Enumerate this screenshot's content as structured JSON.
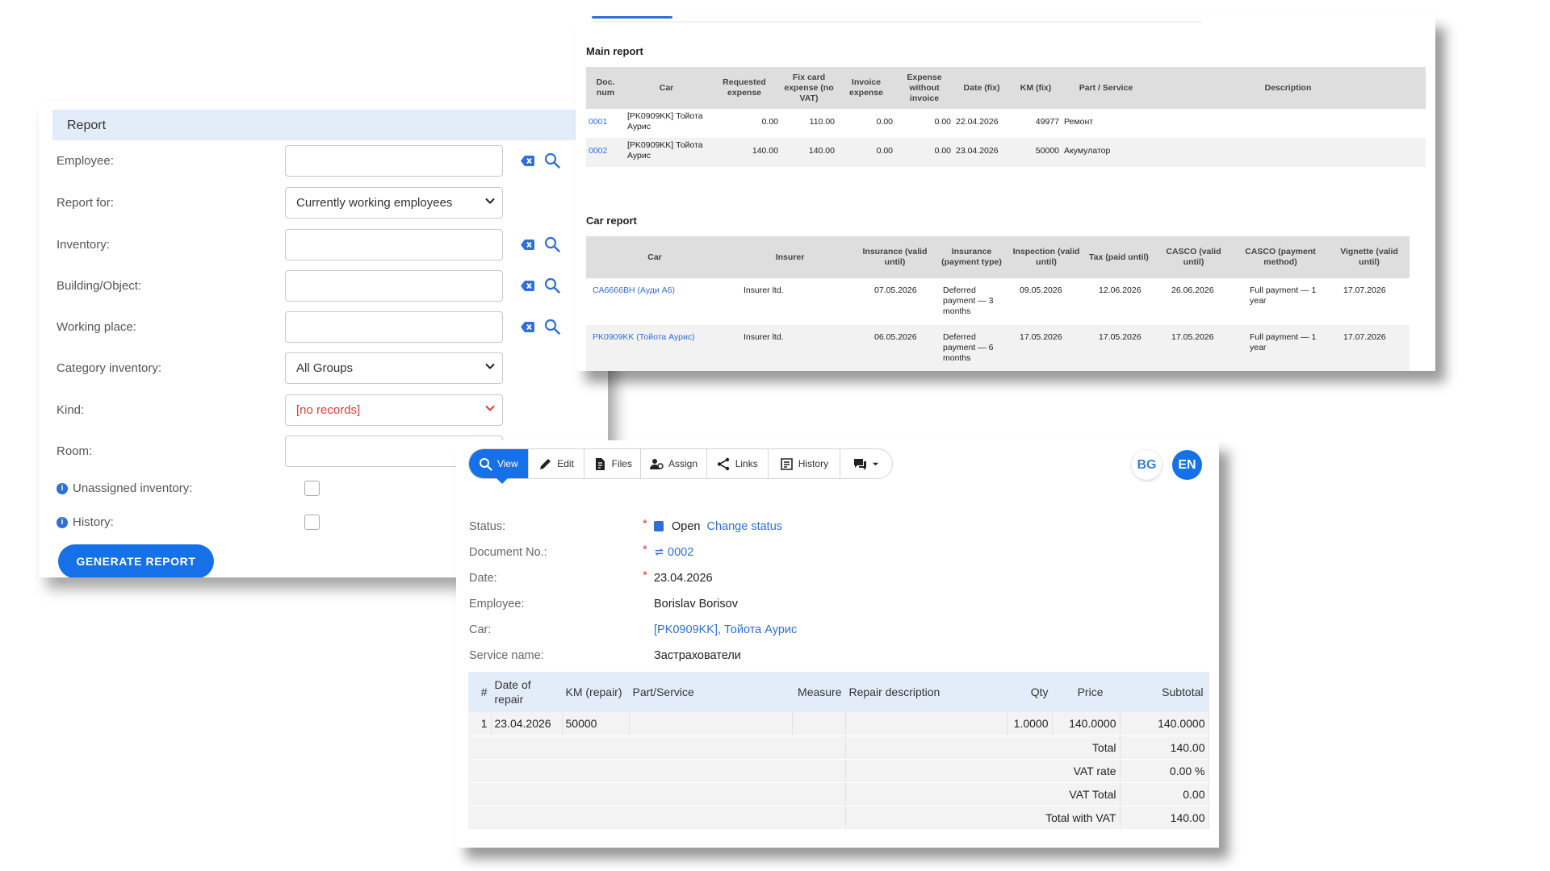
{
  "report_form": {
    "header": "Report",
    "fields": [
      {
        "label": "Employee:",
        "type": "input",
        "value": "",
        "lookup": true
      },
      {
        "label": "Report for:",
        "type": "select",
        "value": "Currently working employees"
      },
      {
        "label": "Inventory:",
        "type": "input",
        "value": "",
        "lookup": true
      },
      {
        "label": "Building/Object:",
        "type": "input",
        "value": "",
        "lookup": true
      },
      {
        "label": "Working place:",
        "type": "input",
        "value": "",
        "lookup": true
      },
      {
        "label": "Category inventory:",
        "type": "select",
        "value": "All Groups"
      },
      {
        "label": "Kind:",
        "type": "select",
        "value": "[no records]",
        "color": "#e03a3a"
      },
      {
        "label": "Room:",
        "type": "input",
        "value": ""
      }
    ],
    "checkboxes": [
      {
        "label": "Unassigned inventory:",
        "checked": false
      },
      {
        "label": "History:",
        "checked": false
      }
    ],
    "generate_button": "GENERATE REPORT"
  },
  "main_report": {
    "title": "Main report",
    "columns": [
      "Doc. num",
      "Car",
      "Requested expense",
      "Fix card expense (no VAT)",
      "Invoice expense",
      "Expense without invoice",
      "Date (fix)",
      "KM (fix)",
      "Part / Service",
      "Description"
    ],
    "rows": [
      {
        "doc": "0001",
        "car": "[PK0909KK] Тойота Аурис",
        "requested": "0.00",
        "fix_card": "110.00",
        "invoice": "0.00",
        "without_invoice": "0.00",
        "date": "22.04.2026",
        "km": "49977",
        "part": "Ремонт",
        "description": ""
      },
      {
        "doc": "0002",
        "car": "[PK0909KK] Тойота Аурис",
        "requested": "140.00",
        "fix_card": "140.00",
        "invoice": "0.00",
        "without_invoice": "0.00",
        "date": "23.04.2026",
        "km": "50000",
        "part": "Акумулатор",
        "description": ""
      }
    ]
  },
  "car_report": {
    "title": "Car report",
    "columns": [
      "Car",
      "Insurer",
      "Insurance (valid until)",
      "Insurance (payment type)",
      "Inspection (valid until)",
      "Tax (paid until)",
      "CASCO (valid until)",
      "CASCO (payment method)",
      "Vignette (valid until)"
    ],
    "rows": [
      {
        "car": "CA6666BH (Ауди А6)",
        "insurer": "Insurer ltd.",
        "ins_valid": "07.05.2026",
        "ins_payment": "Deferred payment — 3 months",
        "inspection": "09.05.2026",
        "tax": "12.06.2026",
        "casco_valid": "26.06.2026",
        "casco_payment": "Full payment — 1 year",
        "vignette": "17.07.2026"
      },
      {
        "car": "PK0909KK (Тойота Аурис)",
        "insurer": "Insurer ltd.",
        "ins_valid": "06.05.2026",
        "ins_payment": "Deferred payment — 6 months",
        "inspection": "17.05.2026",
        "tax": "17.05.2026",
        "casco_valid": "17.05.2026",
        "casco_payment": "Full payment — 1 year",
        "vignette": "17.07.2026"
      }
    ]
  },
  "document": {
    "toolbar": [
      {
        "label": "View",
        "icon": "search-icon",
        "active": true
      },
      {
        "label": "Edit",
        "icon": "pencil-icon"
      },
      {
        "label": "Files",
        "icon": "file-icon"
      },
      {
        "label": "Assign",
        "icon": "user-assign-icon"
      },
      {
        "label": "Links",
        "icon": "share-icon"
      },
      {
        "label": "History",
        "icon": "history-icon"
      }
    ],
    "languages": [
      "BG",
      "EN"
    ],
    "active_language": "EN",
    "fields": {
      "status_label": "Status:",
      "status_value": "Open",
      "change_status": "Change status",
      "docno_label": "Document No.:",
      "docno_value": "0002",
      "date_label": "Date:",
      "date_value": "23.04.2026",
      "employee_label": "Employee:",
      "employee_value": "Borislav Borisov",
      "car_label": "Car:",
      "car_value": "[PK0909KK], Тойота Аурис",
      "service_label": "Service name:",
      "service_value": "Застрахователи"
    },
    "items_table": {
      "columns": [
        "#",
        "Date of repair",
        "KM (repair)",
        "Part/Service",
        "Measure",
        "Repair description",
        "Qty",
        "Price",
        "Subtotal"
      ],
      "rows": [
        {
          "n": "1",
          "date": "23.04.2026",
          "km": "50000",
          "part": "",
          "measure": "",
          "desc": "",
          "qty": "1.0000",
          "price": "140.0000",
          "subtotal": "140.0000"
        }
      ],
      "summary": [
        {
          "label": "Total",
          "value": "140.00"
        },
        {
          "label": "VAT rate",
          "value": "0.00 %"
        },
        {
          "label": "VAT Total",
          "value": "0.00"
        },
        {
          "label": "Total with VAT",
          "value": "140.00"
        }
      ]
    }
  }
}
